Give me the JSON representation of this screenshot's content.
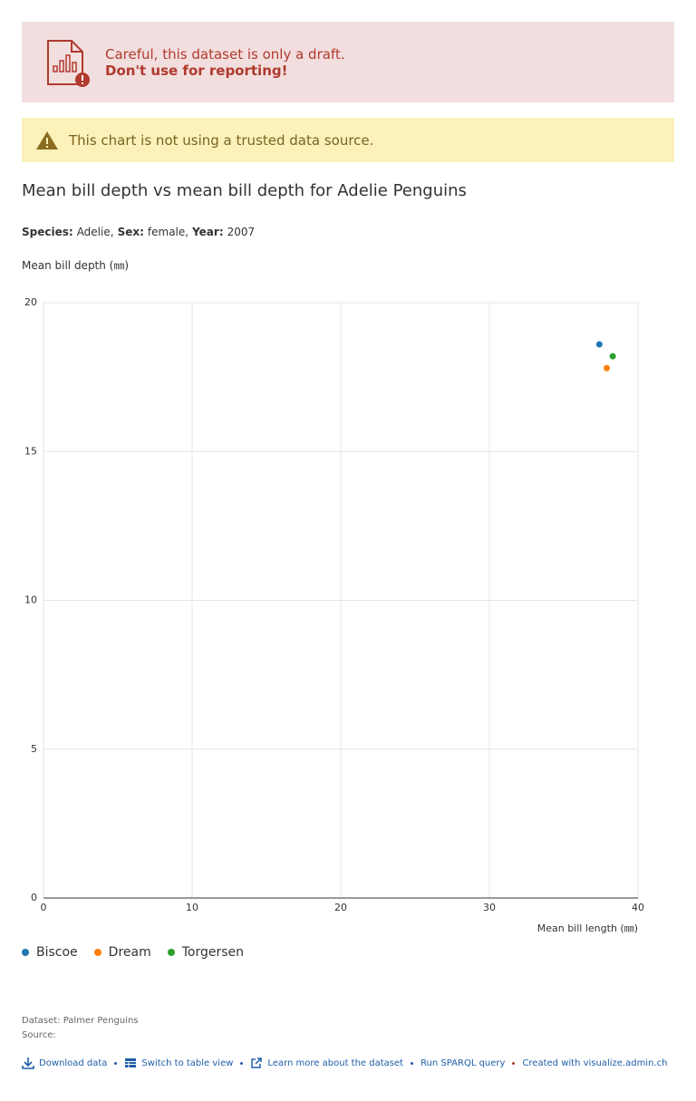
{
  "banners": {
    "draft_line1": "Careful, this dataset is only a draft.",
    "draft_line2": "Don't use for reporting!",
    "warning": "This chart is not using a trusted data source."
  },
  "filters": [
    {
      "label": "Species:",
      "value": "Adelie,"
    },
    {
      "label": "Sex:",
      "value": "female,"
    },
    {
      "label": "Year:",
      "value": "2007"
    }
  ],
  "chart_data": {
    "type": "scatter",
    "title": "Mean bill depth vs mean bill depth for Adelie Penguins",
    "y_label": "Mean bill depth (㎜)",
    "x_label": "Mean bill length (㎜)",
    "series": [
      {
        "name": "Biscoe",
        "color": "#1f77b4",
        "x": [
          37.4
        ],
        "values": [
          18.6
        ]
      },
      {
        "name": "Dream",
        "color": "#ff7f0e",
        "x": [
          37.9
        ],
        "values": [
          17.8
        ]
      },
      {
        "name": "Torgersen",
        "color": "#2ca02c",
        "x": [
          38.3
        ],
        "values": [
          18.2
        ]
      }
    ],
    "xlim": [
      0,
      40
    ],
    "xticks": [
      0,
      10,
      20,
      30,
      40
    ],
    "ylim": [
      0,
      20
    ],
    "yticks": [
      0,
      5,
      10,
      15,
      20
    ],
    "grid": true
  },
  "footer": {
    "dataset": "Dataset: Palmer Penguins",
    "source": "Source:",
    "links": [
      "Download data",
      "Switch to table view",
      "Learn more about the dataset",
      "Run SPARQL query",
      "Created with visualize.admin.ch"
    ]
  }
}
